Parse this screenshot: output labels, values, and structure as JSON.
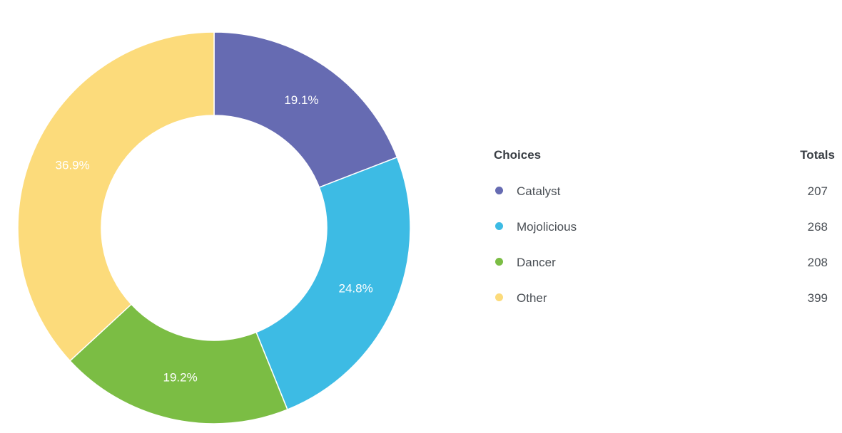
{
  "legend": {
    "header_choices": "Choices",
    "header_totals": "Totals"
  },
  "chart_data": {
    "type": "pie",
    "style": "donut",
    "categories": [
      "Catalyst",
      "Mojolicious",
      "Dancer",
      "Other"
    ],
    "values": [
      207,
      268,
      208,
      399
    ],
    "percent_labels": [
      "19.1%",
      "24.8%",
      "19.2%",
      "36.9%"
    ],
    "colors": [
      "#666bb2",
      "#3dbbe4",
      "#7bbd44",
      "#fcdb7b"
    ],
    "legend_placement": "right"
  }
}
